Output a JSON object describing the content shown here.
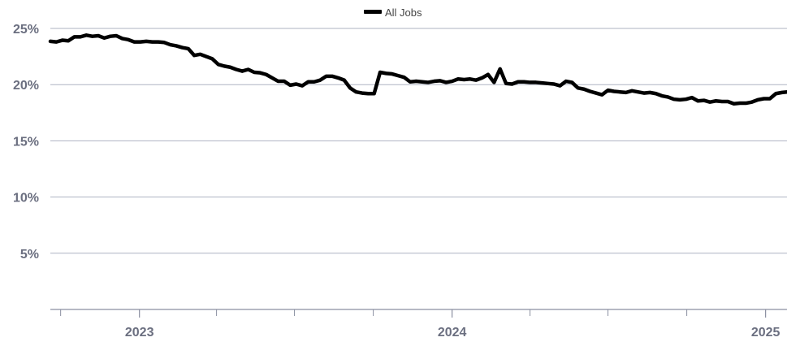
{
  "chart_data": {
    "type": "line",
    "title": "",
    "xlabel": "",
    "ylabel": "",
    "x_range": [
      "2022-09-19",
      "2025-01-26"
    ],
    "ylim": [
      0,
      25
    ],
    "y_ticks": [
      5,
      10,
      15,
      20,
      25
    ],
    "y_tick_labels": [
      "5%",
      "10%",
      "15%",
      "20%",
      "25%"
    ],
    "x_tick_labels": [
      {
        "date": "2023-01-01",
        "label": "2023"
      },
      {
        "date": "2024-01-01",
        "label": "2024"
      },
      {
        "date": "2025-01-01",
        "label": "2025"
      }
    ],
    "x_minor_ticks": [
      "2022-10-01",
      "2023-04-01",
      "2023-07-01",
      "2023-10-01",
      "2024-04-01",
      "2024-07-01",
      "2024-10-01"
    ],
    "grid": "horizontal",
    "legend": {
      "position": "top-center",
      "entries": [
        "All Jobs"
      ]
    },
    "colors": {
      "series": "#000000",
      "grid": "#aeb3c2",
      "axis": "#8a8fa0",
      "tick_label": "#6b6f80",
      "legend_text": "#444444"
    },
    "series": [
      {
        "name": "All Jobs",
        "points": [
          [
            "2022-09-19",
            23.85
          ],
          [
            "2022-09-26",
            23.8
          ],
          [
            "2022-10-03",
            23.95
          ],
          [
            "2022-10-10",
            23.9
          ],
          [
            "2022-10-17",
            24.25
          ],
          [
            "2022-10-24",
            24.25
          ],
          [
            "2022-10-31",
            24.4
          ],
          [
            "2022-11-07",
            24.3
          ],
          [
            "2022-11-14",
            24.35
          ],
          [
            "2022-11-21",
            24.15
          ],
          [
            "2022-11-28",
            24.3
          ],
          [
            "2022-12-05",
            24.35
          ],
          [
            "2022-12-12",
            24.1
          ],
          [
            "2022-12-19",
            24.0
          ],
          [
            "2022-12-26",
            23.8
          ],
          [
            "2023-01-02",
            23.8
          ],
          [
            "2023-01-09",
            23.85
          ],
          [
            "2023-01-16",
            23.8
          ],
          [
            "2023-01-23",
            23.8
          ],
          [
            "2023-01-30",
            23.75
          ],
          [
            "2023-02-06",
            23.55
          ],
          [
            "2023-02-13",
            23.45
          ],
          [
            "2023-02-20",
            23.3
          ],
          [
            "2023-02-27",
            23.2
          ],
          [
            "2023-03-06",
            22.6
          ],
          [
            "2023-03-13",
            22.7
          ],
          [
            "2023-03-20",
            22.5
          ],
          [
            "2023-03-27",
            22.3
          ],
          [
            "2023-04-03",
            21.8
          ],
          [
            "2023-04-10",
            21.65
          ],
          [
            "2023-04-17",
            21.55
          ],
          [
            "2023-04-24",
            21.35
          ],
          [
            "2023-05-01",
            21.2
          ],
          [
            "2023-05-08",
            21.35
          ],
          [
            "2023-05-15",
            21.1
          ],
          [
            "2023-05-22",
            21.05
          ],
          [
            "2023-05-29",
            20.9
          ],
          [
            "2023-06-05",
            20.6
          ],
          [
            "2023-06-12",
            20.3
          ],
          [
            "2023-06-19",
            20.3
          ],
          [
            "2023-06-26",
            19.95
          ],
          [
            "2023-07-03",
            20.05
          ],
          [
            "2023-07-10",
            19.9
          ],
          [
            "2023-07-17",
            20.25
          ],
          [
            "2023-07-24",
            20.25
          ],
          [
            "2023-07-31",
            20.4
          ],
          [
            "2023-08-07",
            20.75
          ],
          [
            "2023-08-14",
            20.75
          ],
          [
            "2023-08-21",
            20.6
          ],
          [
            "2023-08-28",
            20.4
          ],
          [
            "2023-09-04",
            19.7
          ],
          [
            "2023-09-11",
            19.35
          ],
          [
            "2023-09-18",
            19.25
          ],
          [
            "2023-09-25",
            19.2
          ],
          [
            "2023-10-02",
            19.2
          ],
          [
            "2023-10-09",
            21.1
          ],
          [
            "2023-10-16",
            21.0
          ],
          [
            "2023-10-23",
            20.95
          ],
          [
            "2023-10-30",
            20.8
          ],
          [
            "2023-11-06",
            20.65
          ],
          [
            "2023-11-13",
            20.25
          ],
          [
            "2023-11-20",
            20.3
          ],
          [
            "2023-11-27",
            20.25
          ],
          [
            "2023-12-04",
            20.2
          ],
          [
            "2023-12-11",
            20.3
          ],
          [
            "2023-12-18",
            20.35
          ],
          [
            "2023-12-25",
            20.2
          ],
          [
            "2024-01-01",
            20.3
          ],
          [
            "2024-01-08",
            20.5
          ],
          [
            "2024-01-15",
            20.45
          ],
          [
            "2024-01-22",
            20.5
          ],
          [
            "2024-01-29",
            20.4
          ],
          [
            "2024-02-05",
            20.6
          ],
          [
            "2024-02-12",
            20.9
          ],
          [
            "2024-02-19",
            20.2
          ],
          [
            "2024-02-26",
            21.4
          ],
          [
            "2024-03-04",
            20.1
          ],
          [
            "2024-03-11",
            20.05
          ],
          [
            "2024-03-18",
            20.25
          ],
          [
            "2024-03-25",
            20.25
          ],
          [
            "2024-04-01",
            20.2
          ],
          [
            "2024-04-08",
            20.2
          ],
          [
            "2024-04-15",
            20.15
          ],
          [
            "2024-04-22",
            20.1
          ],
          [
            "2024-04-29",
            20.05
          ],
          [
            "2024-05-06",
            19.9
          ],
          [
            "2024-05-13",
            20.3
          ],
          [
            "2024-05-20",
            20.2
          ],
          [
            "2024-05-27",
            19.7
          ],
          [
            "2024-06-03",
            19.6
          ],
          [
            "2024-06-10",
            19.4
          ],
          [
            "2024-06-17",
            19.25
          ],
          [
            "2024-06-24",
            19.1
          ],
          [
            "2024-07-01",
            19.5
          ],
          [
            "2024-07-08",
            19.4
          ],
          [
            "2024-07-15",
            19.35
          ],
          [
            "2024-07-22",
            19.3
          ],
          [
            "2024-07-29",
            19.45
          ],
          [
            "2024-08-05",
            19.35
          ],
          [
            "2024-08-12",
            19.25
          ],
          [
            "2024-08-19",
            19.3
          ],
          [
            "2024-08-26",
            19.2
          ],
          [
            "2024-09-02",
            19.0
          ],
          [
            "2024-09-09",
            18.9
          ],
          [
            "2024-09-16",
            18.7
          ],
          [
            "2024-09-23",
            18.65
          ],
          [
            "2024-09-30",
            18.7
          ],
          [
            "2024-10-07",
            18.85
          ],
          [
            "2024-10-14",
            18.55
          ],
          [
            "2024-10-21",
            18.6
          ],
          [
            "2024-10-28",
            18.45
          ],
          [
            "2024-11-04",
            18.55
          ],
          [
            "2024-11-11",
            18.5
          ],
          [
            "2024-11-18",
            18.5
          ],
          [
            "2024-11-25",
            18.3
          ],
          [
            "2024-12-02",
            18.35
          ],
          [
            "2024-12-09",
            18.35
          ],
          [
            "2024-12-16",
            18.45
          ],
          [
            "2024-12-23",
            18.65
          ],
          [
            "2024-12-30",
            18.75
          ],
          [
            "2025-01-06",
            18.75
          ],
          [
            "2025-01-13",
            19.2
          ],
          [
            "2025-01-20",
            19.3
          ],
          [
            "2025-01-26",
            19.35
          ]
        ]
      }
    ]
  }
}
